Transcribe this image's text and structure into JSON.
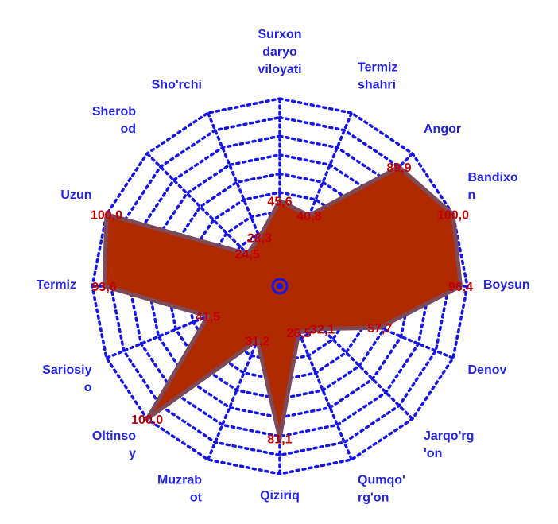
{
  "chart_data": {
    "type": "radar",
    "title": "",
    "categories": [
      "Surxon daryo viloyati",
      "Termiz shahri",
      "Angor",
      "Bandixo n",
      "Boysun",
      "Denov",
      "Jarqo'rg 'on",
      "Qumqo' rg'on",
      "Qiziriq",
      "Muzrab ot",
      "Oltinso y",
      "Sariosiy o",
      "Termiz",
      "Uzun",
      "Sherob od",
      "Sho'rchi"
    ],
    "category_lines": [
      [
        "Surxon",
        "daryo",
        "viloyati"
      ],
      [
        "Termiz",
        "shahri"
      ],
      [
        "Angor"
      ],
      [
        "Bandixo",
        "n"
      ],
      [
        "Boysun"
      ],
      [
        "Denov"
      ],
      [
        "Jarqo'rg",
        "'on"
      ],
      [
        "Qumqo'",
        "rg'on"
      ],
      [
        "Qiziriq"
      ],
      [
        "Muzrab",
        "ot"
      ],
      [
        "Oltinso",
        "y"
      ],
      [
        "Sariosiy",
        "o"
      ],
      [
        "Termiz"
      ],
      [
        "Uzun"
      ],
      [
        "Sherob",
        "od"
      ],
      [
        "Sho'rchi"
      ]
    ],
    "series": [
      {
        "values": [
          45.6,
          40.8,
          89.9,
          100.0,
          96.4,
          57.7,
          32.1,
          26.5,
          81.1,
          31.2,
          100.0,
          41.5,
          93.6,
          100.0,
          24.5,
          28.3
        ],
        "value_labels": [
          "45,6",
          "40,8",
          "89,9",
          "100,0",
          "96,4",
          "57,7",
          "32,1",
          "26,5",
          "81,1",
          "31,2",
          "100,0",
          "41,5",
          "93,6",
          "100,0",
          "24,5",
          "28,3"
        ]
      }
    ],
    "rlim": [
      0,
      100
    ],
    "grid_rings": 10,
    "grid": true,
    "colors": {
      "area": "#b02a00",
      "area_edge": "#7d4a5a",
      "grid": "#1515e8",
      "category_text": "#2323e6",
      "value_text": "#c00000"
    }
  }
}
